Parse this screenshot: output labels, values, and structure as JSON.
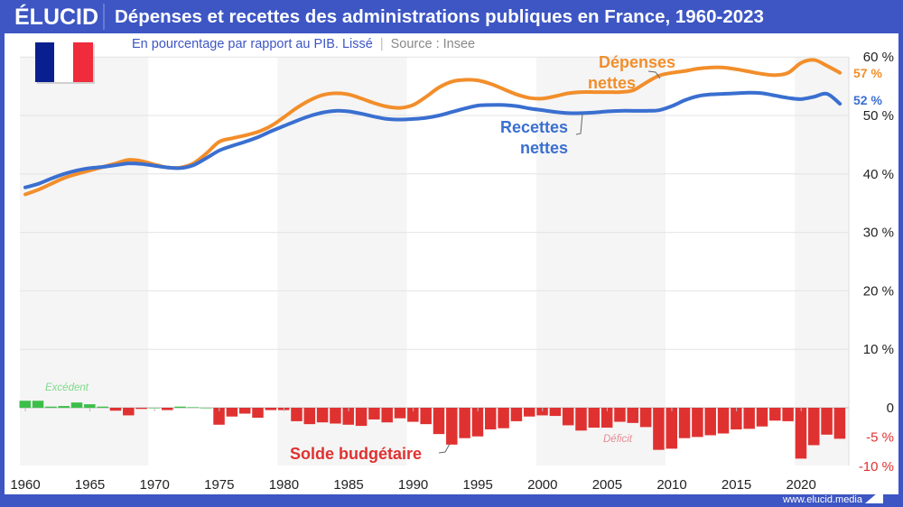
{
  "header": {
    "logo": "ÉLUCID",
    "title": "Dépenses et recettes des administrations publiques en France, 1960-2023",
    "subtitle": "En pourcentage par rapport au PIB. Lissé",
    "separator": "|",
    "source": "Source : Insee"
  },
  "footer": {
    "website": "www.elucid.media"
  },
  "flag": "france-flag-icon",
  "colors": {
    "brand": "#3d56c4",
    "depenses": "#f28e2b",
    "recettes": "#3a6fd0",
    "surplus": "#3cbf4a",
    "deficit": "#e03131",
    "surplus_label": "#7fd98a",
    "deficit_label": "#e88a93"
  },
  "chart_data": {
    "type": "line+bar",
    "x": [
      1960,
      1961,
      1962,
      1963,
      1964,
      1965,
      1966,
      1967,
      1968,
      1969,
      1970,
      1971,
      1972,
      1973,
      1974,
      1975,
      1976,
      1977,
      1978,
      1979,
      1980,
      1981,
      1982,
      1983,
      1984,
      1985,
      1986,
      1987,
      1988,
      1989,
      1990,
      1991,
      1992,
      1993,
      1994,
      1995,
      1996,
      1997,
      1998,
      1999,
      2000,
      2001,
      2002,
      2003,
      2004,
      2005,
      2006,
      2007,
      2008,
      2009,
      2010,
      2011,
      2012,
      2013,
      2014,
      2015,
      2016,
      2017,
      2018,
      2019,
      2020,
      2021,
      2022,
      2023
    ],
    "xticks": [
      "1960",
      "1965",
      "1970",
      "1975",
      "1980",
      "1985",
      "1990",
      "1995",
      "2000",
      "2005",
      "2010",
      "2015",
      "2020"
    ],
    "yticks": [
      {
        "value": 60,
        "label": "60 %"
      },
      {
        "value": 50,
        "label": "50 %"
      },
      {
        "value": 40,
        "label": "40 %"
      },
      {
        "value": 30,
        "label": "30 %"
      },
      {
        "value": 20,
        "label": "20 %"
      },
      {
        "value": 10,
        "label": "10 %"
      },
      {
        "value": 0,
        "label": "0"
      },
      {
        "value": -5,
        "label": "-5 %"
      },
      {
        "value": -10,
        "label": "-10 %"
      }
    ],
    "ylim": [
      -10,
      60
    ],
    "grid": true,
    "series": [
      {
        "name": "Dépenses nettes",
        "type": "line",
        "end_label": "57 %",
        "values": [
          36.5,
          37.3,
          38.3,
          39.3,
          40.0,
          40.6,
          41.2,
          41.8,
          42.4,
          42.2,
          41.6,
          41.1,
          41.1,
          41.8,
          43.5,
          45.5,
          46.1,
          46.6,
          47.2,
          48.2,
          49.7,
          51.3,
          52.6,
          53.5,
          53.8,
          53.6,
          52.9,
          52.1,
          51.5,
          51.3,
          51.8,
          53.2,
          54.8,
          55.8,
          56.1,
          56.0,
          55.4,
          54.5,
          53.6,
          53.0,
          52.9,
          53.3,
          53.8,
          54.0,
          54.0,
          54.0,
          54.0,
          54.3,
          55.6,
          56.8,
          57.3,
          57.6,
          58.0,
          58.2,
          58.2,
          57.9,
          57.5,
          57.1,
          56.9,
          57.3,
          59.0,
          59.5,
          58.5,
          57.3
        ]
      },
      {
        "name": "Recettes nettes",
        "type": "line",
        "end_label": "52 %",
        "values": [
          37.7,
          38.3,
          39.2,
          40.0,
          40.6,
          41.0,
          41.2,
          41.5,
          41.8,
          41.7,
          41.4,
          41.1,
          41.0,
          41.5,
          42.7,
          44.0,
          44.8,
          45.5,
          46.3,
          47.3,
          48.2,
          49.1,
          49.9,
          50.5,
          50.8,
          50.7,
          50.3,
          49.8,
          49.4,
          49.3,
          49.4,
          49.6,
          50.0,
          50.6,
          51.2,
          51.7,
          51.8,
          51.8,
          51.6,
          51.2,
          50.9,
          50.6,
          50.4,
          50.4,
          50.5,
          50.7,
          50.8,
          50.8,
          50.8,
          50.9,
          51.6,
          52.6,
          53.3,
          53.6,
          53.7,
          53.8,
          53.9,
          53.8,
          53.4,
          53.0,
          52.8,
          53.2,
          53.7,
          52.0
        ]
      },
      {
        "name": "Solde budgétaire",
        "type": "bar",
        "values": [
          1.2,
          1.2,
          0.2,
          0.3,
          0.9,
          0.6,
          0.2,
          -0.5,
          -1.3,
          -0.2,
          0.0,
          -0.4,
          0.2,
          0.1,
          0.0,
          -2.9,
          -1.5,
          -1.0,
          -1.7,
          -0.4,
          -0.4,
          -2.3,
          -2.8,
          -2.5,
          -2.7,
          -2.9,
          -3.1,
          -2.0,
          -2.5,
          -1.8,
          -2.4,
          -2.8,
          -4.5,
          -6.3,
          -5.2,
          -4.9,
          -3.7,
          -3.5,
          -2.3,
          -1.5,
          -1.3,
          -1.4,
          -3.0,
          -3.9,
          -3.4,
          -3.4,
          -2.4,
          -2.6,
          -3.3,
          -7.2,
          -7.0,
          -5.2,
          -5.0,
          -4.7,
          -4.4,
          -3.7,
          -3.6,
          -3.2,
          -2.2,
          -2.3,
          -8.7,
          -6.4,
          -4.6,
          -5.3
        ]
      }
    ],
    "annotations": {
      "depenses_label_1": "Dépenses",
      "depenses_label_2": "nettes",
      "recettes_label_1": "Recettes",
      "recettes_label_2": "nettes",
      "solde_label": "Solde budgétaire",
      "surplus": "Excédent",
      "deficit": "Déficit"
    }
  }
}
